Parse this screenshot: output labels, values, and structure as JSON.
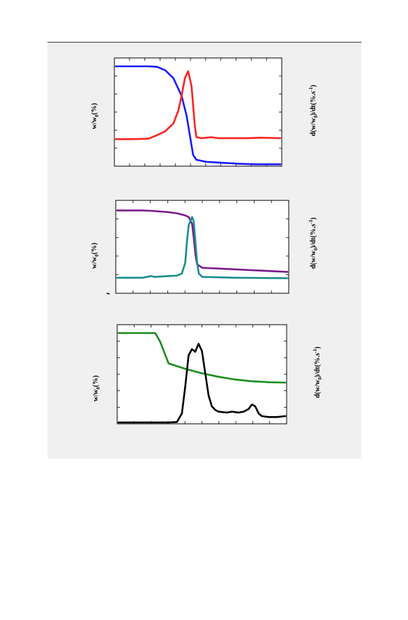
{
  "chart_data": [
    {
      "type": "line",
      "ylabel_left": "w/w0(%)",
      "ylabel_right": "d(w/w0)/dt(%.s-1)",
      "xlim": [
        0,
        100
      ],
      "grid": false,
      "series": [
        {
          "color": "#1a1aff",
          "points": [
            [
              0,
              100
            ],
            [
              10,
              100
            ],
            [
              20,
              100
            ],
            [
              25,
              99.5
            ],
            [
              30,
              96
            ],
            [
              35,
              88
            ],
            [
              40,
              70
            ],
            [
              43,
              50
            ],
            [
              45,
              30
            ],
            [
              47,
              10
            ],
            [
              49,
              5
            ],
            [
              55,
              3
            ],
            [
              65,
              2
            ],
            [
              75,
              1
            ],
            [
              85,
              0.5
            ],
            [
              100,
              0.5
            ]
          ]
        },
        {
          "color": "#ff2020",
          "points": [
            [
              0,
              26
            ],
            [
              10,
              26
            ],
            [
              20,
              26.5
            ],
            [
              25,
              30
            ],
            [
              30,
              34
            ],
            [
              35,
              42
            ],
            [
              38,
              55
            ],
            [
              40,
              70
            ],
            [
              42,
              88
            ],
            [
              44,
              95
            ],
            [
              46,
              80
            ],
            [
              48,
              40
            ],
            [
              49,
              28
            ],
            [
              52,
              27
            ],
            [
              58,
              28
            ],
            [
              62,
              27
            ],
            [
              80,
              27
            ],
            [
              88,
              27.5
            ],
            [
              100,
              27
            ]
          ]
        }
      ]
    },
    {
      "type": "line",
      "ylabel_left": "w/w0(%)",
      "ylabel_right": "d(w/w0)/dt(%.s-1)",
      "xlim": [
        0,
        100
      ],
      "grid": false,
      "series": [
        {
          "color": "#7a1a8c",
          "points": [
            [
              0,
              98
            ],
            [
              15,
              98
            ],
            [
              20,
              97.5
            ],
            [
              30,
              96
            ],
            [
              35,
              94.5
            ],
            [
              40,
              92
            ],
            [
              42,
              90
            ],
            [
              44,
              82
            ],
            [
              45,
              65
            ],
            [
              46,
              45
            ],
            [
              47,
              33
            ],
            [
              50,
              29
            ],
            [
              60,
              28
            ],
            [
              80,
              26
            ],
            [
              100,
              24
            ]
          ]
        },
        {
          "color": "#1a8c8c",
          "points": [
            [
              0,
              17
            ],
            [
              15,
              17
            ],
            [
              20,
              19
            ],
            [
              22,
              18
            ],
            [
              30,
              19
            ],
            [
              35,
              19.5
            ],
            [
              38,
              22
            ],
            [
              40,
              35
            ],
            [
              41,
              60
            ],
            [
              42,
              80
            ],
            [
              44,
              90
            ],
            [
              45,
              85
            ],
            [
              46,
              60
            ],
            [
              47,
              35
            ],
            [
              48,
              22
            ],
            [
              50,
              18
            ],
            [
              70,
              17
            ],
            [
              100,
              16.5
            ]
          ]
        }
      ]
    },
    {
      "type": "line",
      "ylabel_left": "w/w0(%)",
      "ylabel_right": "d(w/w0)/dt(%.s-1)",
      "xlim": [
        0,
        100
      ],
      "grid": false,
      "series": [
        {
          "color": "#1a8c1a",
          "points": [
            [
              0,
              100
            ],
            [
              15,
              100
            ],
            [
              22,
              100
            ],
            [
              25,
              90
            ],
            [
              30,
              66
            ],
            [
              35,
              63
            ],
            [
              40,
              60
            ],
            [
              50,
              55
            ],
            [
              60,
              51
            ],
            [
              70,
              48
            ],
            [
              80,
              46
            ],
            [
              90,
              45
            ],
            [
              100,
              44.5
            ]
          ]
        },
        {
          "color": "#000000",
          "points": [
            [
              0,
              0
            ],
            [
              30,
              0
            ],
            [
              35,
              0.5
            ],
            [
              38,
              10
            ],
            [
              40,
              40
            ],
            [
              42,
              75
            ],
            [
              44,
              82
            ],
            [
              46,
              79
            ],
            [
              48,
              88
            ],
            [
              50,
              80
            ],
            [
              52,
              55
            ],
            [
              54,
              30
            ],
            [
              56,
              18
            ],
            [
              58,
              14
            ],
            [
              60,
              12
            ],
            [
              65,
              11
            ],
            [
              68,
              12
            ],
            [
              72,
              11
            ],
            [
              75,
              12
            ],
            [
              78,
              15
            ],
            [
              80,
              20
            ],
            [
              82,
              18
            ],
            [
              84,
              10
            ],
            [
              86,
              7
            ],
            [
              90,
              6
            ],
            [
              95,
              6
            ],
            [
              100,
              7
            ]
          ]
        }
      ]
    }
  ]
}
